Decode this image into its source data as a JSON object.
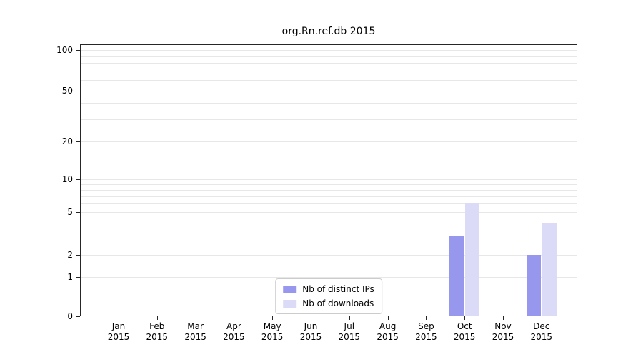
{
  "title": "org.Rn.ref.db 2015",
  "chart_data": {
    "type": "bar",
    "title": "org.Rn.ref.db 2015",
    "categories": [
      "Jan 2015",
      "Feb 2015",
      "Mar 2015",
      "Apr 2015",
      "May 2015",
      "Jun 2015",
      "Jul 2015",
      "Aug 2015",
      "Sep 2015",
      "Oct 2015",
      "Nov 2015",
      "Dec 2015"
    ],
    "series": [
      {
        "name": "Nb of distinct IPs",
        "color": "#9897ee",
        "values": [
          0,
          0,
          0,
          0,
          0,
          0,
          0,
          0,
          0,
          3,
          0,
          2
        ]
      },
      {
        "name": "Nb of downloads",
        "color": "#dbdbf8",
        "values": [
          0,
          0,
          0,
          0,
          0,
          0,
          0,
          0,
          0,
          6,
          0,
          4
        ]
      }
    ],
    "yticks": [
      0,
      1,
      2,
      5,
      10,
      20,
      50,
      100
    ],
    "minor_gridlines": [
      1,
      2,
      3,
      4,
      5,
      6,
      7,
      8,
      9,
      10,
      20,
      30,
      40,
      50,
      60,
      70,
      80,
      90,
      100
    ],
    "yaxis_scale": "log",
    "ylim": [
      0,
      100
    ],
    "grid": true,
    "legend_position": "bottom-center",
    "xlabel": "",
    "ylabel": ""
  }
}
